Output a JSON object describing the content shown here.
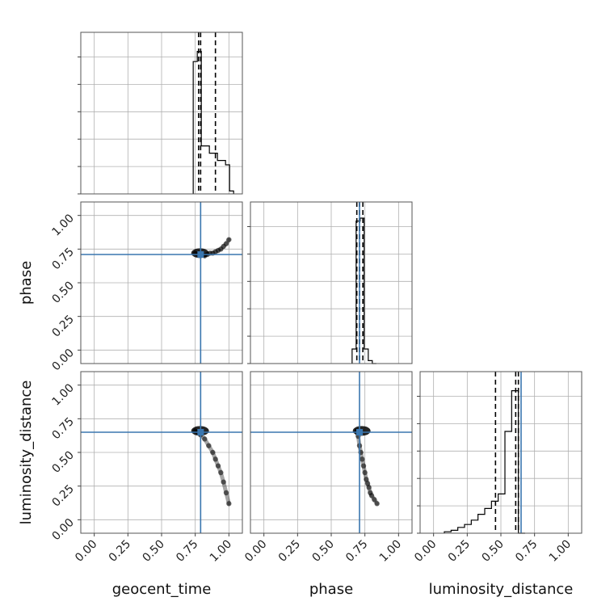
{
  "chart_data": {
    "type": "corner",
    "parameters": [
      "geocent_time",
      "phase",
      "luminosity_distance"
    ],
    "axis_range": [
      -0.1,
      1.1
    ],
    "ticks": [
      0.0,
      0.25,
      0.5,
      0.75,
      1.0
    ],
    "tick_labels": [
      "0.00",
      "0.25",
      "0.50",
      "0.75",
      "1.00"
    ],
    "grid": true,
    "colors": {
      "truth": "#3a76af",
      "hist": "#000000",
      "grid": "#b0b0b0",
      "frame": "#555555"
    },
    "truths": {
      "geocent_time": 0.79,
      "phase": 0.71,
      "luminosity_distance": 0.65
    },
    "histograms": {
      "geocent_time": {
        "bins": [
          0.735,
          0.765,
          0.795,
          0.825,
          0.855,
          0.885,
          0.915,
          0.945,
          0.975,
          1.005,
          1.035
        ],
        "heights": [
          0.91,
          0.98,
          0.33,
          0.33,
          0.28,
          0.28,
          0.23,
          0.23,
          0.2,
          0.02
        ],
        "quantiles": [
          0.775,
          0.79,
          0.9
        ]
      },
      "phase": {
        "bins": [
          0.655,
          0.685,
          0.715,
          0.745,
          0.775,
          0.805,
          0.835
        ],
        "heights": [
          0.1,
          0.98,
          1.0,
          0.1,
          0.02,
          0.0
        ],
        "quantiles": [
          0.69,
          0.71,
          0.735
        ]
      },
      "luminosity_distance": {
        "bins": [
          0.08,
          0.13,
          0.18,
          0.23,
          0.28,
          0.33,
          0.38,
          0.43,
          0.48,
          0.53,
          0.58,
          0.63,
          0.68
        ],
        "heights": [
          0.01,
          0.02,
          0.04,
          0.06,
          0.09,
          0.13,
          0.17,
          0.22,
          0.27,
          0.7,
          0.98,
          0.0
        ],
        "quantiles": [
          0.46,
          0.61,
          0.63
        ]
      }
    },
    "scatter": {
      "geocent_time_vs_phase": {
        "x": [
          0.75,
          0.77,
          0.78,
          0.8,
          0.82,
          0.84,
          0.86,
          0.88,
          0.9,
          0.92,
          0.94,
          0.96,
          0.98,
          1.0
        ],
        "y": [
          0.72,
          0.71,
          0.72,
          0.71,
          0.7,
          0.71,
          0.72,
          0.72,
          0.73,
          0.74,
          0.75,
          0.77,
          0.79,
          0.82
        ]
      },
      "geocent_time_vs_luminosity_distance": {
        "x": [
          0.75,
          0.77,
          0.79,
          0.82,
          0.85,
          0.88,
          0.9,
          0.92,
          0.94,
          0.96,
          0.98,
          1.0
        ],
        "y": [
          0.66,
          0.65,
          0.63,
          0.6,
          0.55,
          0.5,
          0.45,
          0.4,
          0.35,
          0.28,
          0.2,
          0.12
        ]
      },
      "phase_vs_luminosity_distance": {
        "x": [
          0.69,
          0.7,
          0.71,
          0.72,
          0.73,
          0.74,
          0.75,
          0.76,
          0.77,
          0.78,
          0.79,
          0.8,
          0.82,
          0.84
        ],
        "y": [
          0.66,
          0.62,
          0.55,
          0.5,
          0.45,
          0.4,
          0.35,
          0.3,
          0.27,
          0.24,
          0.2,
          0.18,
          0.15,
          0.12
        ]
      }
    }
  }
}
